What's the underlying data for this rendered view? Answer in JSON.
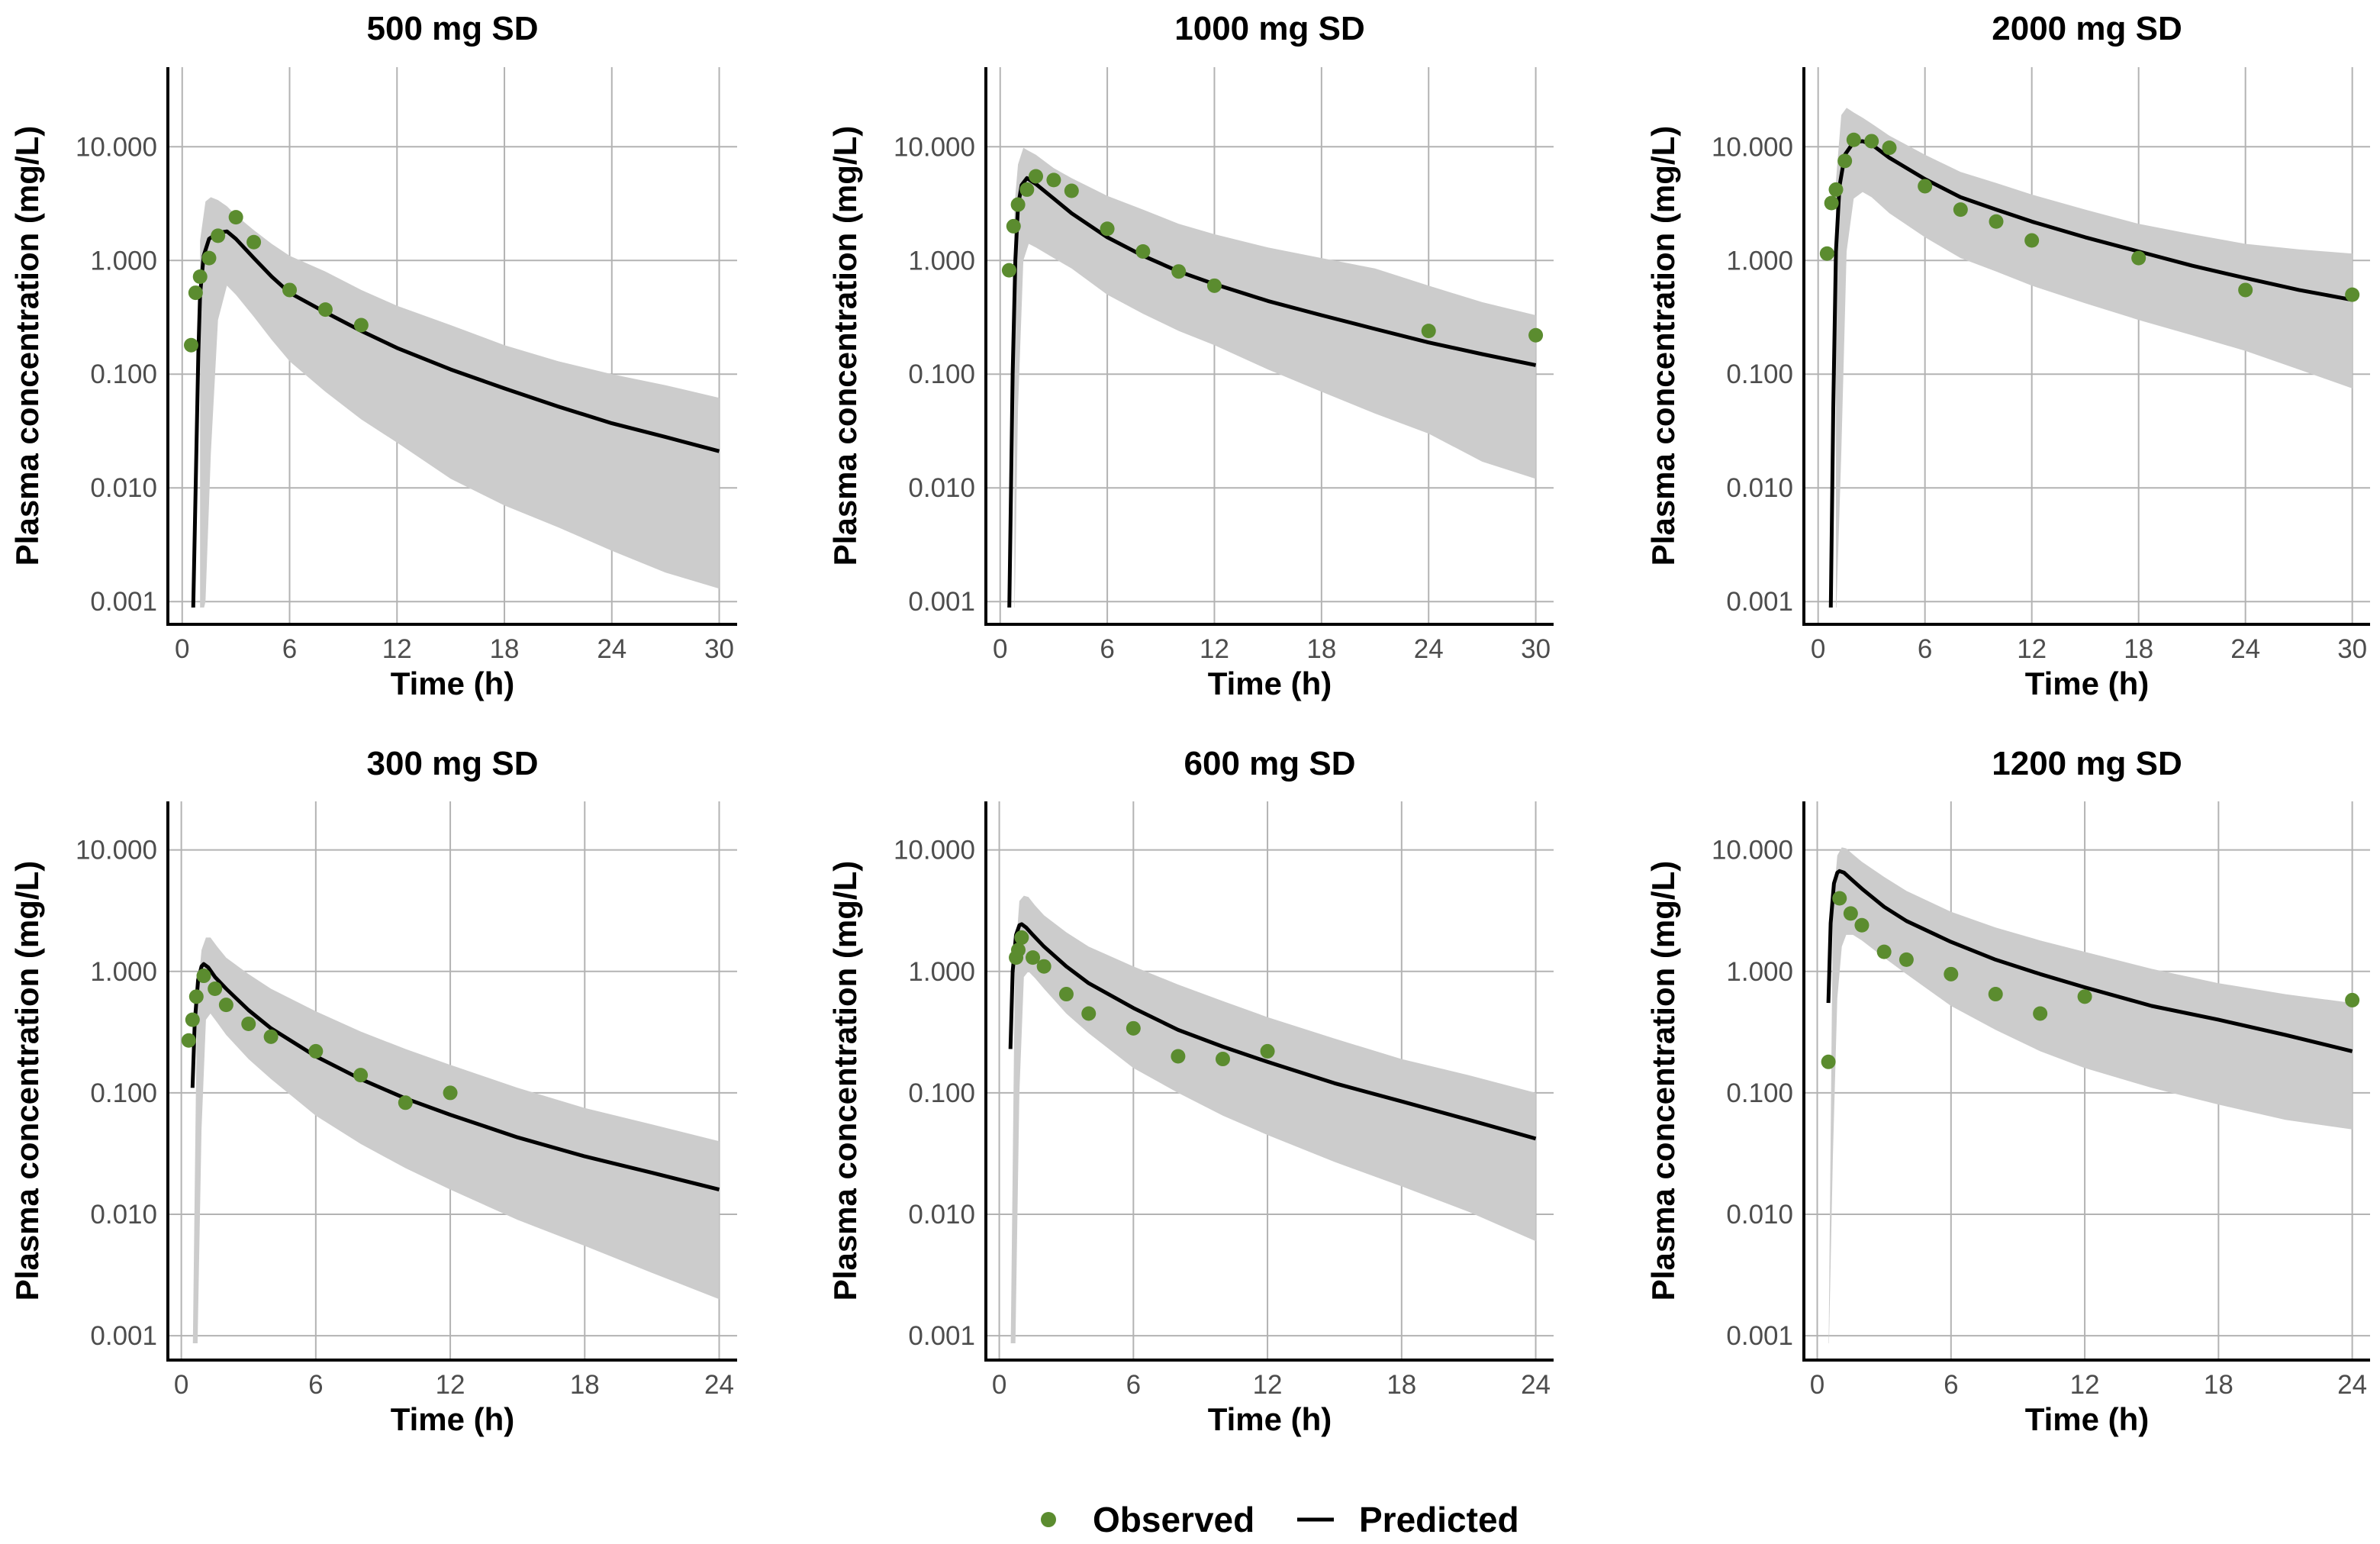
{
  "colors": {
    "observed": "#5b8c2f",
    "predicted": "#000000",
    "band": "#cccccc",
    "grid": "#b3b3b3"
  },
  "legend": {
    "observed_label": "Observed",
    "predicted_label": "Predicted"
  },
  "axis": {
    "y_ticks": [
      "10.000",
      "1.000",
      "0.100",
      "0.010",
      "0.001"
    ]
  },
  "chart_data": [
    {
      "type": "line",
      "title": "500 mg SD",
      "xlabel": "Time (h)",
      "ylabel": "Plasma concentration (mg/L)",
      "xlim": [
        -0.8,
        31
      ],
      "x_ticks": [
        0,
        6,
        12,
        18,
        24,
        30
      ],
      "ylim_log10": [
        -3.2,
        1.7
      ],
      "observed": {
        "x": [
          0.5,
          0.75,
          1,
          1.5,
          2,
          3,
          4,
          6,
          8,
          10
        ],
        "y": [
          0.18,
          0.52,
          0.72,
          1.05,
          1.65,
          2.4,
          1.45,
          0.55,
          0.37,
          0.27
        ]
      },
      "predicted": {
        "x": [
          0.6,
          0.75,
          0.9,
          1.0,
          1.2,
          1.5,
          2.0,
          2.5,
          3,
          4,
          5,
          6,
          8,
          10,
          12,
          15,
          18,
          21,
          24,
          27,
          30
        ],
        "y": [
          0.00063,
          0.01,
          0.15,
          0.5,
          1.1,
          1.55,
          1.75,
          1.8,
          1.55,
          1.05,
          0.72,
          0.52,
          0.35,
          0.24,
          0.17,
          0.11,
          0.075,
          0.052,
          0.037,
          0.028,
          0.021
        ]
      },
      "band": {
        "x": [
          1.0,
          1.3,
          1.6,
          2.0,
          2.5,
          3,
          4,
          5,
          6,
          8,
          10,
          12,
          15,
          18,
          21,
          24,
          27,
          30
        ],
        "upper": [
          1.5,
          3.3,
          3.6,
          3.4,
          3.0,
          2.5,
          1.85,
          1.4,
          1.1,
          0.8,
          0.55,
          0.4,
          0.27,
          0.18,
          0.13,
          0.1,
          0.08,
          0.062
        ],
        "lower": [
          0.00063,
          0.001,
          0.02,
          0.3,
          0.6,
          0.5,
          0.32,
          0.2,
          0.13,
          0.07,
          0.04,
          0.025,
          0.012,
          0.007,
          0.0045,
          0.0028,
          0.0018,
          0.0013
        ]
      }
    },
    {
      "type": "line",
      "title": "1000 mg SD",
      "xlabel": "Time (h)",
      "ylabel": "Plasma concentration (mg/L)",
      "xlim": [
        -0.8,
        31
      ],
      "x_ticks": [
        0,
        6,
        12,
        18,
        24,
        30
      ],
      "ylim_log10": [
        -3.2,
        1.7
      ],
      "observed": {
        "x": [
          0.5,
          0.75,
          1,
          1.5,
          2,
          3,
          4,
          6,
          8,
          10,
          12,
          24,
          30
        ],
        "y": [
          0.82,
          2.0,
          3.1,
          4.2,
          5.5,
          5.1,
          4.1,
          1.9,
          1.2,
          0.8,
          0.6,
          0.24,
          0.22
        ]
      },
      "predicted": {
        "x": [
          0.5,
          0.7,
          0.85,
          1.0,
          1.2,
          1.5,
          2,
          3,
          4,
          6,
          8,
          10,
          12,
          15,
          18,
          21,
          24,
          27,
          30
        ],
        "y": [
          0.00063,
          0.1,
          1.0,
          3.0,
          4.6,
          5.3,
          4.7,
          3.5,
          2.6,
          1.6,
          1.1,
          0.8,
          0.62,
          0.44,
          0.33,
          0.25,
          0.19,
          0.15,
          0.12
        ]
      },
      "band": {
        "x": [
          0.8,
          1.0,
          1.3,
          1.6,
          2,
          3,
          4,
          6,
          8,
          10,
          12,
          15,
          18,
          21,
          24,
          27,
          30
        ],
        "upper": [
          3.0,
          7.0,
          9.8,
          9.2,
          8.5,
          6.5,
          5.3,
          3.7,
          2.8,
          2.1,
          1.7,
          1.3,
          1.05,
          0.85,
          0.6,
          0.43,
          0.33
        ],
        "lower": [
          0.00063,
          0.05,
          1.0,
          1.4,
          1.3,
          1.05,
          0.85,
          0.5,
          0.34,
          0.24,
          0.18,
          0.11,
          0.07,
          0.045,
          0.03,
          0.017,
          0.012
        ]
      }
    },
    {
      "type": "line",
      "title": "2000 mg SD",
      "xlabel": "Time (h)",
      "ylabel": "Plasma concentration (mg/L)",
      "xlim": [
        -0.8,
        31
      ],
      "x_ticks": [
        0,
        6,
        12,
        18,
        24,
        30
      ],
      "ylim_log10": [
        -3.2,
        1.7
      ],
      "observed": {
        "x": [
          0.5,
          0.75,
          1,
          1.5,
          2,
          3,
          4,
          6,
          8,
          10,
          12,
          18,
          24,
          30
        ],
        "y": [
          1.15,
          3.2,
          4.2,
          7.5,
          11.5,
          11.2,
          9.8,
          4.5,
          2.8,
          2.2,
          1.5,
          1.05,
          0.55,
          0.5
        ]
      },
      "predicted": {
        "x": [
          0.7,
          0.85,
          1.0,
          1.2,
          1.5,
          2,
          2.5,
          3,
          4,
          6,
          8,
          10,
          12,
          15,
          18,
          21,
          24,
          27,
          30
        ],
        "y": [
          0.00063,
          0.05,
          1.2,
          4.5,
          8.5,
          11.0,
          11.2,
          10.5,
          8.0,
          5.2,
          3.6,
          2.8,
          2.2,
          1.6,
          1.2,
          0.9,
          0.7,
          0.55,
          0.45
        ]
      },
      "band": {
        "x": [
          1.0,
          1.3,
          1.6,
          2,
          2.5,
          3,
          4,
          6,
          8,
          10,
          12,
          15,
          18,
          21,
          24,
          27,
          30
        ],
        "upper": [
          5.0,
          19.0,
          22.0,
          20.0,
          18.0,
          16.0,
          12.5,
          8.5,
          6.0,
          4.8,
          3.8,
          2.8,
          2.1,
          1.7,
          1.4,
          1.25,
          1.15
        ],
        "lower": [
          0.00063,
          0.02,
          1.2,
          3.5,
          4.0,
          3.6,
          2.6,
          1.6,
          1.05,
          0.8,
          0.6,
          0.42,
          0.3,
          0.22,
          0.16,
          0.11,
          0.075
        ]
      }
    },
    {
      "type": "line",
      "title": "300 mg SD",
      "xlabel": "Time (h)",
      "ylabel": "Plasma concentration (mg/L)",
      "xlim": [
        -0.6,
        24.8
      ],
      "x_ticks": [
        0,
        6,
        12,
        18,
        24
      ],
      "ylim_log10": [
        -3.2,
        1.4
      ],
      "observed": {
        "x": [
          0.33,
          0.5,
          0.67,
          1,
          1.5,
          2,
          3,
          4,
          6,
          8,
          10,
          12
        ],
        "y": [
          0.27,
          0.4,
          0.62,
          0.92,
          0.72,
          0.53,
          0.37,
          0.29,
          0.22,
          0.14,
          0.083,
          0.1
        ]
      },
      "predicted": {
        "x": [
          0.5,
          0.6,
          0.75,
          0.9,
          1.0,
          1.2,
          1.5,
          2,
          3,
          4,
          6,
          8,
          10,
          12,
          15,
          18,
          21,
          24
        ],
        "y": [
          0.11,
          0.38,
          0.85,
          1.1,
          1.15,
          1.08,
          0.9,
          0.72,
          0.48,
          0.34,
          0.2,
          0.13,
          0.09,
          0.066,
          0.043,
          0.03,
          0.022,
          0.016
        ]
      },
      "band": {
        "x": [
          0.5,
          0.7,
          0.9,
          1.1,
          1.3,
          1.6,
          2,
          3,
          4,
          6,
          8,
          10,
          12,
          15,
          18,
          21,
          24
        ],
        "upper": [
          0.0005,
          0.6,
          1.5,
          1.9,
          1.9,
          1.6,
          1.3,
          0.95,
          0.72,
          0.47,
          0.32,
          0.23,
          0.17,
          0.11,
          0.075,
          0.055,
          0.04
        ],
        "lower": [
          0.0005,
          0.0005,
          0.05,
          0.4,
          0.45,
          0.38,
          0.3,
          0.19,
          0.13,
          0.065,
          0.038,
          0.024,
          0.016,
          0.009,
          0.0055,
          0.0033,
          0.002
        ]
      }
    },
    {
      "type": "line",
      "title": "600 mg SD",
      "xlabel": "Time (h)",
      "ylabel": "Plasma concentration (mg/L)",
      "xlim": [
        -0.6,
        24.8
      ],
      "x_ticks": [
        0,
        6,
        12,
        18,
        24
      ],
      "ylim_log10": [
        -3.2,
        1.4
      ],
      "observed": {
        "x": [
          0.75,
          0.85,
          1.0,
          1.5,
          2,
          3,
          4,
          6,
          8,
          10,
          12
        ],
        "y": [
          1.3,
          1.5,
          1.9,
          1.3,
          1.1,
          0.65,
          0.45,
          0.34,
          0.2,
          0.19,
          0.22
        ]
      },
      "predicted": {
        "x": [
          0.5,
          0.6,
          0.75,
          0.9,
          1.0,
          1.2,
          1.5,
          2,
          3,
          4,
          6,
          8,
          10,
          12,
          15,
          18,
          21,
          24
        ],
        "y": [
          0.23,
          1.0,
          2.0,
          2.4,
          2.45,
          2.3,
          2.0,
          1.6,
          1.1,
          0.8,
          0.5,
          0.33,
          0.24,
          0.18,
          0.12,
          0.085,
          0.06,
          0.042
        ]
      },
      "band": {
        "x": [
          0.5,
          0.7,
          0.9,
          1.1,
          1.3,
          1.6,
          2,
          3,
          4,
          6,
          8,
          10,
          12,
          15,
          18,
          21,
          24
        ],
        "upper": [
          0.0005,
          1.2,
          3.8,
          4.2,
          4.1,
          3.5,
          2.9,
          2.1,
          1.6,
          1.1,
          0.78,
          0.57,
          0.42,
          0.28,
          0.19,
          0.14,
          0.1
        ],
        "lower": [
          0.0005,
          0.0005,
          0.1,
          0.9,
          1.0,
          0.88,
          0.72,
          0.45,
          0.31,
          0.16,
          0.1,
          0.065,
          0.045,
          0.027,
          0.017,
          0.0105,
          0.006
        ]
      }
    },
    {
      "type": "line",
      "title": "1200 mg SD",
      "xlabel": "Time (h)",
      "ylabel": "Plasma concentration (mg/L)",
      "xlim": [
        -0.6,
        24.8
      ],
      "x_ticks": [
        0,
        6,
        12,
        18,
        24
      ],
      "ylim_log10": [
        -3.2,
        1.4
      ],
      "observed": {
        "x": [
          0.5,
          1,
          1.5,
          2,
          3,
          4,
          6,
          8,
          10,
          12,
          24
        ],
        "y": [
          0.18,
          4.0,
          3.0,
          2.4,
          1.45,
          1.25,
          0.95,
          0.65,
          0.45,
          0.62,
          0.58
        ]
      },
      "predicted": {
        "x": [
          0.5,
          0.6,
          0.75,
          0.9,
          1.0,
          1.2,
          1.5,
          2,
          3,
          4,
          6,
          8,
          10,
          12,
          15,
          18,
          21,
          24
        ],
        "y": [
          0.55,
          2.5,
          5.3,
          6.5,
          6.7,
          6.5,
          5.8,
          4.8,
          3.4,
          2.6,
          1.75,
          1.25,
          0.95,
          0.74,
          0.52,
          0.4,
          0.3,
          0.22
        ]
      },
      "band": {
        "x": [
          0.5,
          0.7,
          0.9,
          1.1,
          1.3,
          1.6,
          2,
          3,
          4,
          6,
          8,
          10,
          12,
          15,
          18,
          21,
          24
        ],
        "upper": [
          0.0005,
          3.5,
          9.0,
          10.5,
          10.3,
          9.2,
          8.0,
          6.0,
          4.6,
          3.1,
          2.3,
          1.8,
          1.45,
          1.05,
          0.8,
          0.65,
          0.55
        ],
        "lower": [
          0.0005,
          0.03,
          0.6,
          1.6,
          2.0,
          2.0,
          1.8,
          1.3,
          0.95,
          0.52,
          0.33,
          0.22,
          0.16,
          0.11,
          0.08,
          0.06,
          0.05
        ]
      }
    }
  ]
}
